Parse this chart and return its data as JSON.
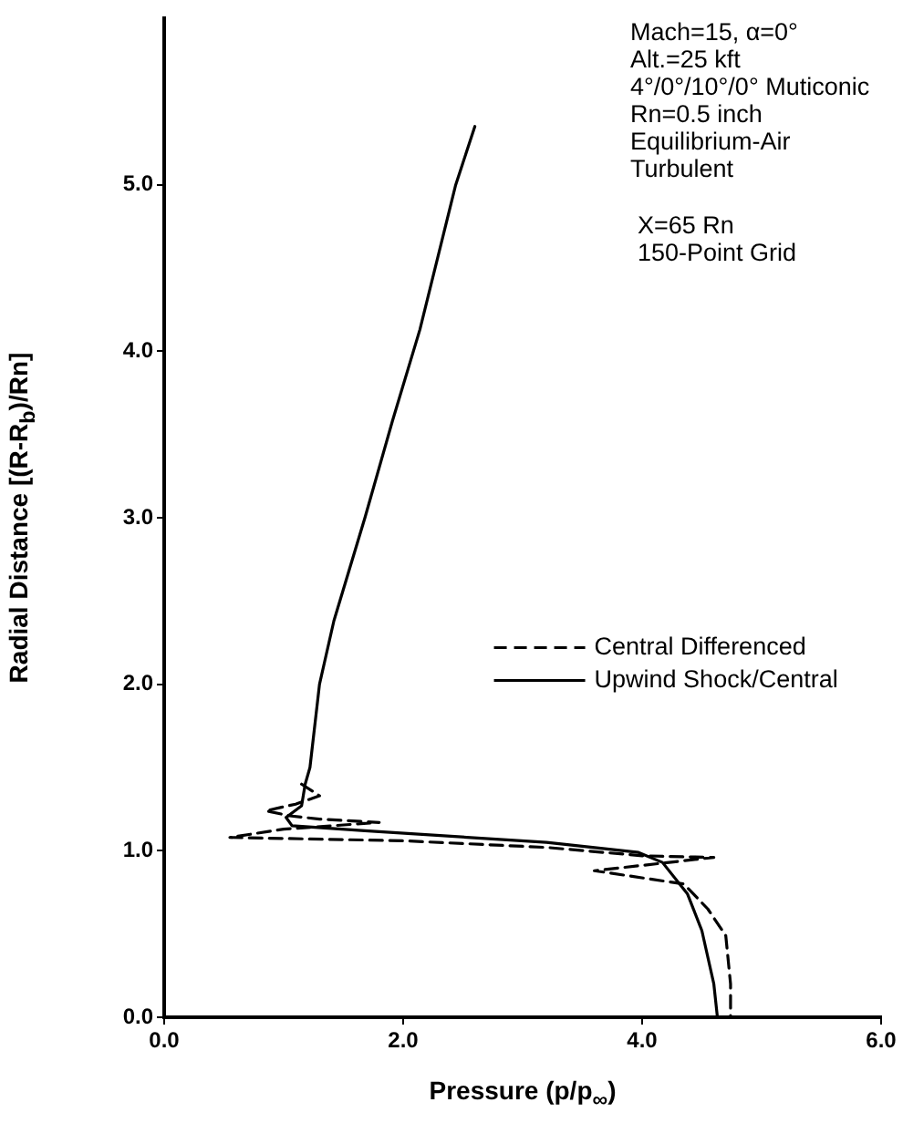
{
  "chart_data": {
    "type": "line",
    "xlabel": "Pressure (p/p$_{∞}$)",
    "ylabel": "Radial Distance [(R-R$_{b}$)/Rn]",
    "xlim": [
      0,
      6
    ],
    "xticks": [
      {
        "value": 0,
        "label": "0.0"
      },
      {
        "value": 2,
        "label": "2.0"
      },
      {
        "value": 4,
        "label": "4.0"
      },
      {
        "value": 6,
        "label": "6.0"
      }
    ],
    "ylim": [
      0,
      6
    ],
    "yticks": [
      {
        "value": 0,
        "label": "0.0"
      },
      {
        "value": 1,
        "label": "1.0"
      },
      {
        "value": 2,
        "label": "2.0"
      },
      {
        "value": 3,
        "label": "3.0"
      },
      {
        "value": 4,
        "label": "4.0"
      },
      {
        "value": 5,
        "label": "5.0"
      }
    ],
    "grid": false,
    "legend": "right",
    "marker": "none",
    "annotations": [
      "Mach=15, α=0°\nAlt.=25 kft\n4°/0°/10°/0° Muticonic\nRn=0.5 inch\nEquilibrium-Air\nTurbulent",
      "X=65 Rn\n150-Point Grid"
    ],
    "series": [
      {
        "name": "Central Differenced",
        "color": "#000000",
        "line_style": "dashed",
        "x": [
          1.15,
          1.3,
          1.1,
          0.85,
          1.05,
          1.3,
          1.8,
          1.0,
          0.55,
          2.0,
          3.2,
          4.0,
          4.6,
          3.6,
          4.35,
          4.55,
          4.7,
          4.74,
          4.74
        ],
        "values": [
          1.4,
          1.33,
          1.28,
          1.24,
          1.21,
          1.19,
          1.17,
          1.13,
          1.08,
          1.06,
          1.02,
          0.97,
          0.96,
          0.88,
          0.8,
          0.65,
          0.49,
          0.2,
          0
        ]
      },
      {
        "name": "Upwind Shock/Central",
        "color": "#000000",
        "line_style": "solid",
        "x": [
          2.6,
          2.44,
          2.14,
          1.91,
          1.68,
          1.42,
          1.3,
          1.22,
          1.18,
          1.15,
          1.02,
          1.07,
          1.68,
          3.2,
          3.97,
          4.17,
          4.38,
          4.5,
          4.6,
          4.63
        ],
        "values": [
          5.35,
          5.0,
          4.13,
          3.58,
          3.0,
          2.38,
          2.0,
          1.5,
          1.4,
          1.27,
          1.2,
          1.15,
          1.12,
          1.05,
          0.99,
          0.93,
          0.74,
          0.52,
          0.2,
          0
        ]
      }
    ]
  }
}
